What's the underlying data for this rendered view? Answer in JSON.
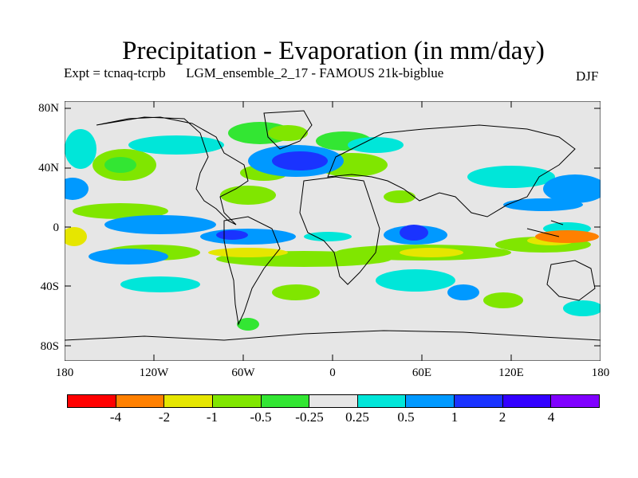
{
  "title": "Precipitation - Evaporation (in mm/day)",
  "subtitle": {
    "experiment": "Expt = tcnaq-tcrpb",
    "run": "LGM_ensemble_2_17 - FAMOUS 21k-bigblue",
    "season": "DJF"
  },
  "map": {
    "projection": "cylindrical equidistant",
    "extent": {
      "lon": [
        -180,
        180
      ],
      "lat": [
        -90,
        90
      ]
    },
    "lat_ticks": [
      "80N",
      "40N",
      "0",
      "40S",
      "80S"
    ],
    "lon_ticks": [
      "180",
      "120W",
      "60W",
      "0",
      "60E",
      "120E",
      "180"
    ],
    "background_color": "#e6e6e6",
    "coastline_color": "#000000"
  },
  "legend": {
    "colors": [
      "#ff0000",
      "#ff8000",
      "#e6e600",
      "#80e600",
      "#33e633",
      "#e6e6e6",
      "#00e6d9",
      "#0099ff",
      "#1a33ff",
      "#3300ff",
      "#8000ff"
    ],
    "labels": [
      "-4",
      "-2",
      "-1",
      "-0.5",
      "-0.25",
      "0.25",
      "0.5",
      "1",
      "2",
      "4"
    ]
  },
  "icons": {
    "coastlines": "world-coastline-outline"
  }
}
